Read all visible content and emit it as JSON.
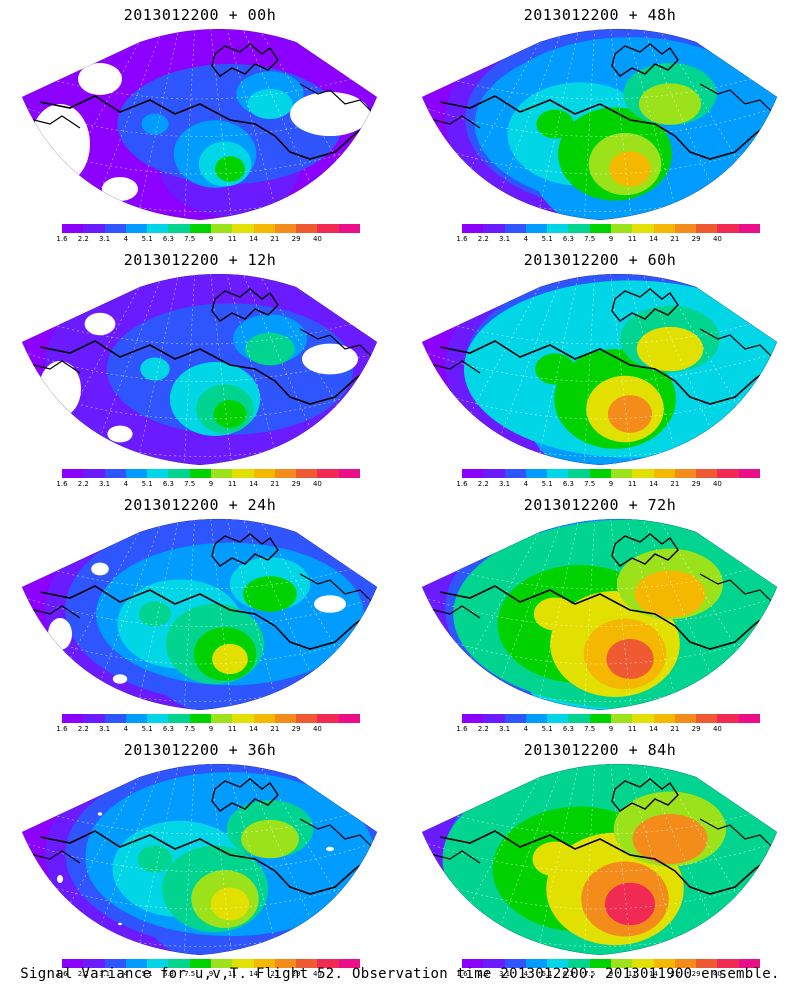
{
  "colors": [
    "#8b00ff",
    "#6a1bff",
    "#2f55ff",
    "#009cff",
    "#00d6e6",
    "#00d48f",
    "#00d200",
    "#9be21b",
    "#e2e000",
    "#f4b800",
    "#f48c1c",
    "#f05a32",
    "#f02a52",
    "#ea0f88"
  ],
  "tick_labels": [
    "1.6",
    "2.2",
    "3.1",
    "4",
    "5.1",
    "6.3",
    "7.5",
    "9",
    "11",
    "14",
    "21",
    "29",
    "40"
  ],
  "panel_titles": [
    "2013012200 + 00h",
    "2013012200 + 48h",
    "2013012200 + 12h",
    "2013012200 + 60h",
    "2013012200 + 24h",
    "2013012200 + 72h",
    "2013012200 + 36h",
    "2013012200 + 84h"
  ],
  "forecast_hours": [
    0,
    48,
    12,
    60,
    24,
    72,
    36,
    84
  ],
  "caption": "Signal Variance for u,v,T. Flight 52. Observation time 2013012200. 2013011900 ensemble."
}
